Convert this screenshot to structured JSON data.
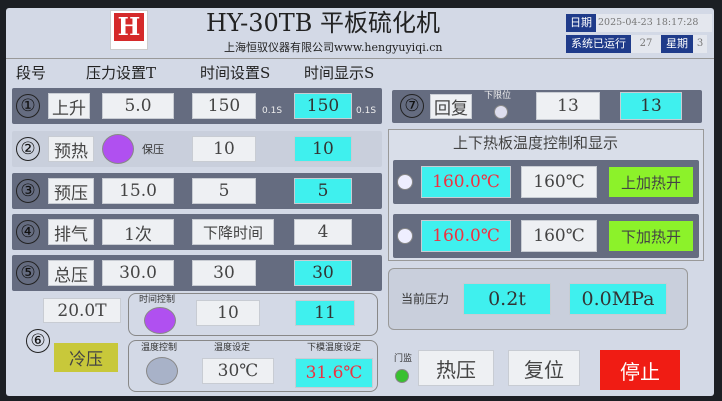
{
  "header": {
    "title": "HY-30TB 平板硫化机",
    "subtitle": "上海恒驭仪器有限公司www.hengyuyiqi.cn",
    "logo_letter": "H",
    "logo_url": "www.hengyuyiqi.com",
    "date_label": "日期",
    "date_value": "2025-04-23 18:17:28",
    "runtime_label": "系统已运行",
    "runtime_value": "27",
    "weekday_label": "星期",
    "weekday_value": "3"
  },
  "columns": {
    "segment": "段号",
    "pressure": "压力设置T",
    "time_set": "时间设置S",
    "time_display": "时间显示S"
  },
  "rows": [
    {
      "num": "①",
      "name": "上升",
      "pressure": "5.0",
      "time_set": "150",
      "unit1": "0.1S",
      "time_display": "150",
      "unit2": "0.1S"
    },
    {
      "num": "②",
      "name": "预热",
      "hold_label": "保压",
      "time_set": "10",
      "time_display": "10"
    },
    {
      "num": "③",
      "name": "预压",
      "pressure": "15.0",
      "time_set": "5",
      "time_display": "5"
    },
    {
      "num": "④",
      "name": "排气",
      "pressure": "1次",
      "time_set": "下降时间",
      "time_display": "4"
    },
    {
      "num": "⑤",
      "name": "总压",
      "pressure": "30.0",
      "time_set": "30",
      "time_display": "30"
    }
  ],
  "cold": {
    "num": "⑥",
    "pressure": "20.0T",
    "name": "冷压",
    "time_ctrl_label": "时间控制",
    "time_set": "10",
    "time_display": "11",
    "temp_ctrl_label": "温度控制",
    "temp_set_label": "温度设定",
    "temp_set": "30℃",
    "lower_temp_label": "下模温度设定",
    "lower_temp": "31.6℃"
  },
  "row7": {
    "num": "⑦",
    "name": "回复",
    "limit_label": "下限位",
    "time_set": "13",
    "time_display": "13"
  },
  "heat": {
    "title": "上下热板温度控制和显示",
    "upper": {
      "actual": "160.0℃",
      "set": "160℃",
      "button": "上加热开"
    },
    "lower": {
      "actual": "160.0℃",
      "set": "160℃",
      "button": "下加热开"
    }
  },
  "pressure": {
    "label": "当前压力",
    "tons": "0.2t",
    "mpa": "0.0MPa"
  },
  "bottom": {
    "door_label": "门监",
    "hot_press": "热压",
    "reset": "复位",
    "stop": "停止"
  },
  "colors": {
    "cyan": "#3ff0ee",
    "green": "#8cf22a",
    "red": "#f01c14",
    "purple": "#b050f0",
    "yellow": "#c8c83a",
    "temp_text": "#f03040"
  }
}
